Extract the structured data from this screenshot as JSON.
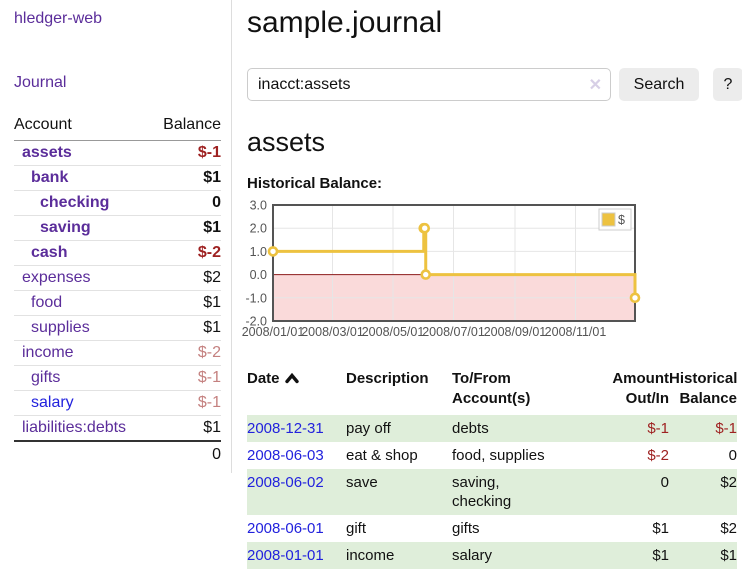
{
  "colors": {
    "accent_purple": "#5b2d9a",
    "link_blue": "#2222dd",
    "negative_dark": "#9e2121",
    "negative_light": "#c4807f",
    "row_green": "#dfeeda",
    "series_gold": "#edc240",
    "negative_fill_pink": "#fadada",
    "zero_line_red": "#8b1a1a",
    "chart_border_gray": "#545454"
  },
  "sidebar": {
    "app_title": "hledger-web",
    "journal_label": "Journal",
    "account_col": "Account",
    "balance_col": "Balance",
    "accounts": [
      {
        "name": "assets",
        "indent": 0,
        "bold": true,
        "balance": "$-1",
        "balance_color": "neg-dark"
      },
      {
        "name": "bank",
        "indent": 1,
        "bold": true,
        "balance": "$1",
        "balance_color": "pos"
      },
      {
        "name": "checking",
        "indent": 2,
        "bold": true,
        "balance": "0",
        "balance_color": "pos"
      },
      {
        "name": "saving",
        "indent": 2,
        "bold": true,
        "balance": "$1",
        "balance_color": "pos"
      },
      {
        "name": "cash",
        "indent": 1,
        "bold": true,
        "balance": "$-2",
        "balance_color": "neg-dark"
      },
      {
        "name": "expenses",
        "indent": 0,
        "bold": false,
        "balance": "$2",
        "balance_color": "pos"
      },
      {
        "name": "food",
        "indent": 1,
        "bold": false,
        "balance": "$1",
        "balance_color": "pos"
      },
      {
        "name": "supplies",
        "indent": 1,
        "bold": false,
        "balance": "$1",
        "balance_color": "pos"
      },
      {
        "name": "income",
        "indent": 0,
        "bold": false,
        "balance": "$-2",
        "balance_color": "neg-light"
      },
      {
        "name": "gifts",
        "indent": 1,
        "bold": false,
        "balance": "$-1",
        "balance_color": "neg-light"
      },
      {
        "name": "salary",
        "indent": 1,
        "bold": false,
        "balance": "$-1",
        "balance_color": "neg-light",
        "link": "blue"
      },
      {
        "name": "liabilities:debts",
        "indent": 0,
        "bold": false,
        "balance": "$1",
        "balance_color": "pos"
      }
    ],
    "total": "0"
  },
  "main": {
    "title": "sample.journal",
    "account_heading": "assets",
    "chart_label": "Historical Balance:"
  },
  "search": {
    "value": "inacct:assets",
    "clear_icon": "✕",
    "button_label": "Search",
    "help_label": "?"
  },
  "chart_data": {
    "type": "line",
    "steps": true,
    "title": "Historical Balance:",
    "xlim": [
      0,
      365
    ],
    "ylim": [
      -2,
      3
    ],
    "series": [
      {
        "name": "$",
        "color": "#edc240",
        "points_day_value": [
          [
            0,
            1
          ],
          [
            152,
            2
          ],
          [
            153,
            2
          ],
          [
            154,
            0
          ],
          [
            365,
            -1
          ]
        ]
      }
    ],
    "x_ticks": [
      {
        "d": 0,
        "label": "2008/01/01"
      },
      {
        "d": 60,
        "label": "2008/03/01"
      },
      {
        "d": 121,
        "label": "2008/05/01"
      },
      {
        "d": 182,
        "label": "2008/07/01"
      },
      {
        "d": 244,
        "label": "2008/09/01"
      },
      {
        "d": 305,
        "label": "2008/11/01"
      }
    ],
    "y_ticks": [
      {
        "v": 3,
        "label": "3.0"
      },
      {
        "v": 2,
        "label": "2.0"
      },
      {
        "v": 1,
        "label": "1.0"
      },
      {
        "v": 0,
        "label": "0.0"
      },
      {
        "v": -1,
        "label": "-1.0"
      },
      {
        "v": -2,
        "label": "-2.0"
      }
    ],
    "legend": "$",
    "grid": true,
    "legend_position": "top-right",
    "zero_line_color": "#8b1a1a",
    "negative_fill": "#fadada"
  },
  "table": {
    "columns": [
      {
        "label": "Date",
        "sortable": true
      },
      {
        "label": "Description"
      },
      {
        "label": "To/From\nAccount(s)"
      },
      {
        "label": "Amount\nOut/In",
        "align": "right"
      },
      {
        "label": "Historical\nBalance",
        "align": "right"
      }
    ],
    "rows": [
      {
        "date": "2008-12-31",
        "description": "pay off",
        "accounts": [
          "debts"
        ],
        "amount": "$-1",
        "amount_color": "neg-dark",
        "balance": "$-1",
        "balance_color": "neg-dark",
        "green": true
      },
      {
        "date": "2008-06-03",
        "description": "eat & shop",
        "accounts": [
          "food, supplies"
        ],
        "amount": "$-2",
        "amount_color": "neg-dark",
        "balance": "0",
        "balance_color": "pos",
        "green": false
      },
      {
        "date": "2008-06-02",
        "description": "save",
        "accounts": [
          "saving,",
          "checking"
        ],
        "amount": "0",
        "amount_color": "pos",
        "balance": "$2",
        "balance_color": "pos",
        "green": true
      },
      {
        "date": "2008-06-01",
        "description": "gift",
        "accounts": [
          "gifts"
        ],
        "amount": "$1",
        "amount_color": "pos",
        "balance": "$2",
        "balance_color": "pos",
        "green": false
      },
      {
        "date": "2008-01-01",
        "description": "income",
        "accounts": [
          "salary"
        ],
        "amount": "$1",
        "amount_color": "pos",
        "balance": "$1",
        "balance_color": "pos",
        "green": true
      }
    ]
  }
}
